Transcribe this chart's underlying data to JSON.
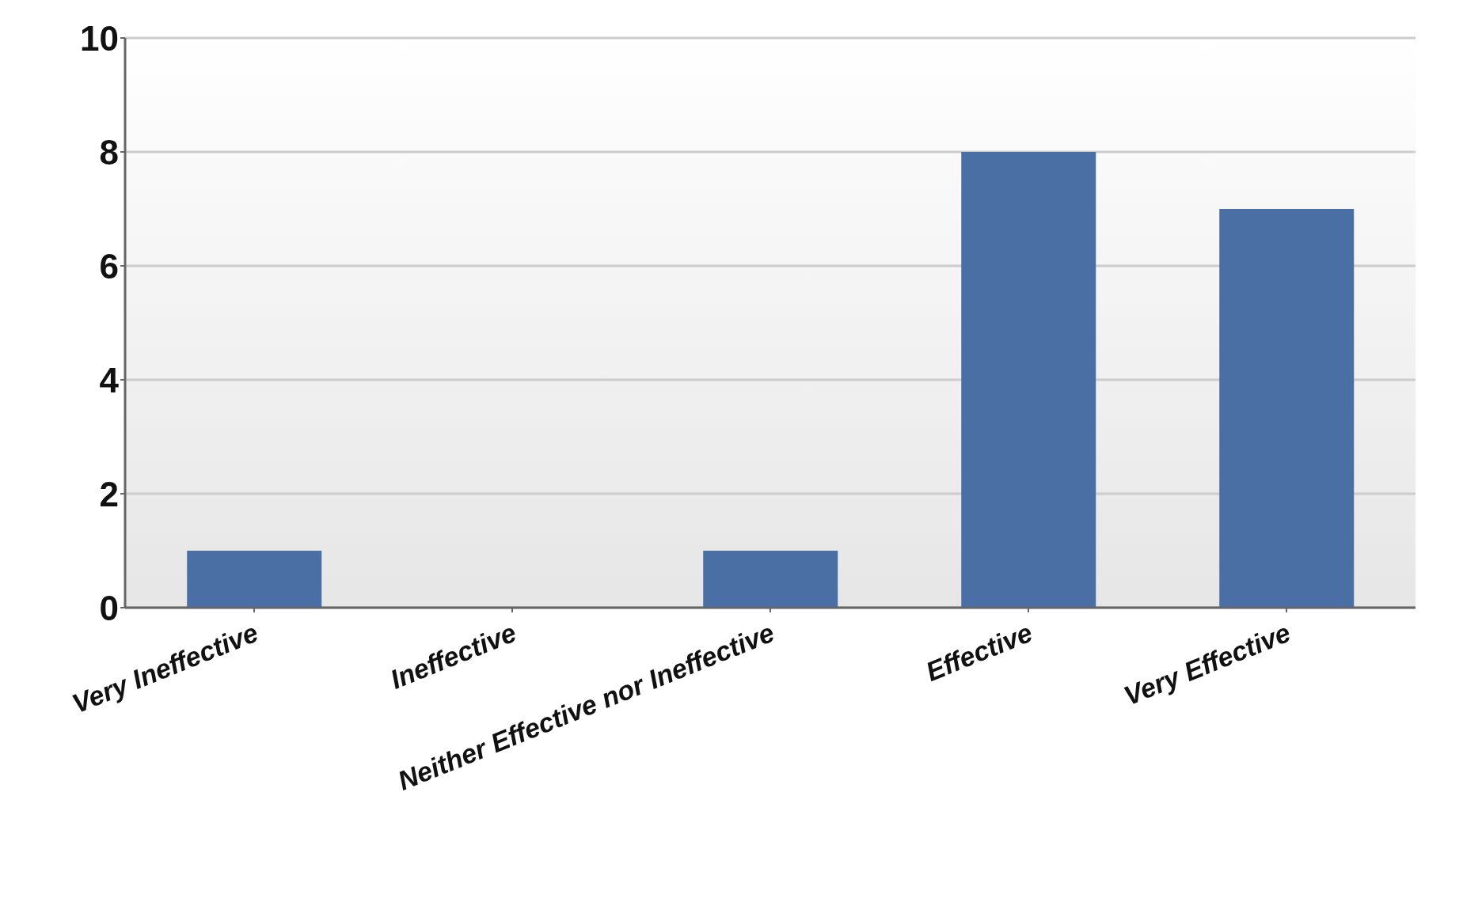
{
  "chart_data": {
    "type": "bar",
    "categories": [
      "Very Ineffective",
      "Ineffective",
      "Neither Effective nor Ineffective",
      "Effective",
      "Very Effective"
    ],
    "values": [
      1,
      0,
      1,
      8,
      7
    ],
    "color": "#4a6fa5",
    "ylim": [
      0,
      10
    ],
    "yticks": [
      0,
      2,
      4,
      6,
      8,
      10
    ],
    "grid": "y",
    "legend": false
  }
}
